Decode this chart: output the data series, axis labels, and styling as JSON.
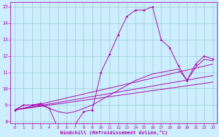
{
  "xlabel": "Windchill (Refroidissement éolien,°C)",
  "xlim": [
    -0.5,
    23.5
  ],
  "ylim": [
    7.9,
    15.3
  ],
  "yticks": [
    8,
    9,
    10,
    11,
    12,
    13,
    14,
    15
  ],
  "xticks": [
    0,
    1,
    2,
    3,
    4,
    5,
    6,
    7,
    8,
    9,
    10,
    11,
    12,
    13,
    14,
    15,
    16,
    17,
    18,
    19,
    20,
    21,
    22,
    23
  ],
  "bg_color": "#cceeff",
  "line_color": "#aa00aa",
  "grid_color": "#99cccc",
  "lines": [
    {
      "x": [
        0,
        1,
        2,
        3,
        4,
        5,
        6,
        7,
        8,
        9,
        10,
        11,
        12,
        13,
        14,
        15,
        16,
        17,
        18,
        19,
        20,
        21,
        22,
        23
      ],
      "y": [
        8.7,
        9.0,
        9.0,
        9.1,
        8.8,
        7.6,
        7.6,
        7.8,
        8.6,
        8.7,
        11.0,
        12.1,
        13.3,
        14.4,
        14.8,
        14.8,
        15.0,
        13.0,
        12.5,
        11.4,
        10.5,
        11.5,
        12.0,
        11.8
      ],
      "marker": true
    },
    {
      "x": [
        0,
        1,
        2,
        3,
        4,
        5,
        6,
        7,
        8,
        9,
        10,
        11,
        12,
        13,
        14,
        15,
        16,
        17,
        18,
        19,
        20,
        21,
        22,
        23
      ],
      "y": [
        8.7,
        9.0,
        9.0,
        9.0,
        8.8,
        8.6,
        8.5,
        8.6,
        8.8,
        9.0,
        9.3,
        9.6,
        9.9,
        10.2,
        10.5,
        10.7,
        10.9,
        11.0,
        11.1,
        11.2,
        10.5,
        11.3,
        11.8,
        11.7
      ],
      "marker": false
    },
    {
      "x": [
        0,
        23
      ],
      "y": [
        8.7,
        11.5
      ],
      "marker": false
    },
    {
      "x": [
        0,
        23
      ],
      "y": [
        8.7,
        10.8
      ],
      "marker": false
    },
    {
      "x": [
        0,
        23
      ],
      "y": [
        8.7,
        10.4
      ],
      "marker": false
    }
  ]
}
